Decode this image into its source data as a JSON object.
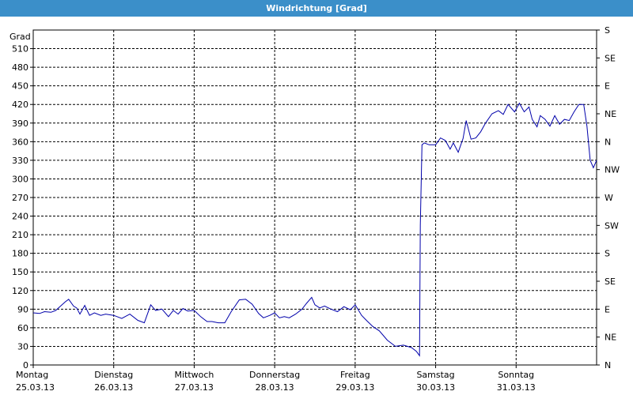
{
  "window": {
    "title": "Windrichtung [Grad]"
  },
  "chart_data": {
    "type": "line",
    "title": "Windrichtung [Grad]",
    "ylabel": "Grad",
    "ylim": [
      0,
      540
    ],
    "yticks": [
      0,
      30,
      60,
      90,
      120,
      150,
      180,
      210,
      240,
      270,
      300,
      330,
      360,
      390,
      420,
      450,
      480,
      510
    ],
    "right_axis_labels": [
      "N",
      "NE",
      "E",
      "SE",
      "S",
      "SW",
      "W",
      "NW",
      "N",
      "NE",
      "E",
      "SE",
      "S"
    ],
    "x_days": [
      {
        "day": "Montag",
        "date": "25.03.13"
      },
      {
        "day": "Dienstag",
        "date": "26.03.13"
      },
      {
        "day": "Mittwoch",
        "date": "27.03.13"
      },
      {
        "day": "Donnerstag",
        "date": "28.03.13"
      },
      {
        "day": "Freitag",
        "date": "29.03.13"
      },
      {
        "day": "Samstag",
        "date": "30.03.13"
      },
      {
        "day": "Sonntag",
        "date": "31.03.13"
      }
    ],
    "xlim": [
      0,
      7
    ],
    "grid": true,
    "line_color": "#0000aa",
    "series": [
      {
        "x": [
          0.0,
          0.08,
          0.14,
          0.22,
          0.28,
          0.34,
          0.4,
          0.44,
          0.5,
          0.54,
          0.58,
          0.64,
          0.7,
          0.76,
          0.84,
          0.9,
          1.0,
          1.1,
          1.2,
          1.3,
          1.38,
          1.46,
          1.52,
          1.6,
          1.68,
          1.74,
          1.8,
          1.86,
          1.92,
          2.0,
          2.08,
          2.16,
          2.22,
          2.3,
          2.38,
          2.46,
          2.56,
          2.64,
          2.72,
          2.8,
          2.86,
          2.94,
          3.0,
          3.06,
          3.12,
          3.18,
          3.26,
          3.34,
          3.4,
          3.46,
          3.5,
          3.56,
          3.62,
          3.7,
          3.78,
          3.86,
          3.94,
          4.0,
          4.08,
          4.14,
          4.22,
          4.3,
          4.4,
          4.5,
          4.6,
          4.7,
          4.76,
          4.8,
          4.81,
          4.83,
          4.86,
          4.92,
          5.0,
          5.06,
          5.12,
          5.18,
          5.22,
          5.28,
          5.34,
          5.38,
          5.44,
          5.5,
          5.56,
          5.62,
          5.7,
          5.78,
          5.84,
          5.9,
          5.98,
          6.04,
          6.1,
          6.16,
          6.2,
          6.26,
          6.3,
          6.36,
          6.42,
          6.48,
          6.54,
          6.6,
          6.66,
          6.72,
          6.78,
          6.84,
          6.88,
          6.92,
          6.96,
          7.0
        ],
        "y": [
          84,
          83,
          86,
          85,
          88,
          95,
          102,
          106,
          95,
          92,
          82,
          96,
          80,
          84,
          80,
          82,
          80,
          75,
          82,
          72,
          68,
          97,
          88,
          90,
          78,
          88,
          82,
          91,
          87,
          88,
          78,
          70,
          70,
          68,
          68,
          86,
          105,
          106,
          98,
          83,
          76,
          80,
          84,
          76,
          78,
          76,
          82,
          90,
          100,
          109,
          97,
          92,
          95,
          90,
          86,
          94,
          89,
          97,
          80,
          72,
          62,
          55,
          40,
          30,
          32,
          28,
          22,
          15,
          225,
          355,
          358,
          355,
          355,
          366,
          362,
          348,
          358,
          343,
          365,
          394,
          364,
          366,
          376,
          390,
          405,
          410,
          404,
          420,
          408,
          422,
          408,
          416,
          396,
          384,
          402,
          396,
          385,
          402,
          388,
          396,
          394,
          408,
          420,
          420,
          385,
          330,
          318,
          330
        ]
      }
    ]
  }
}
